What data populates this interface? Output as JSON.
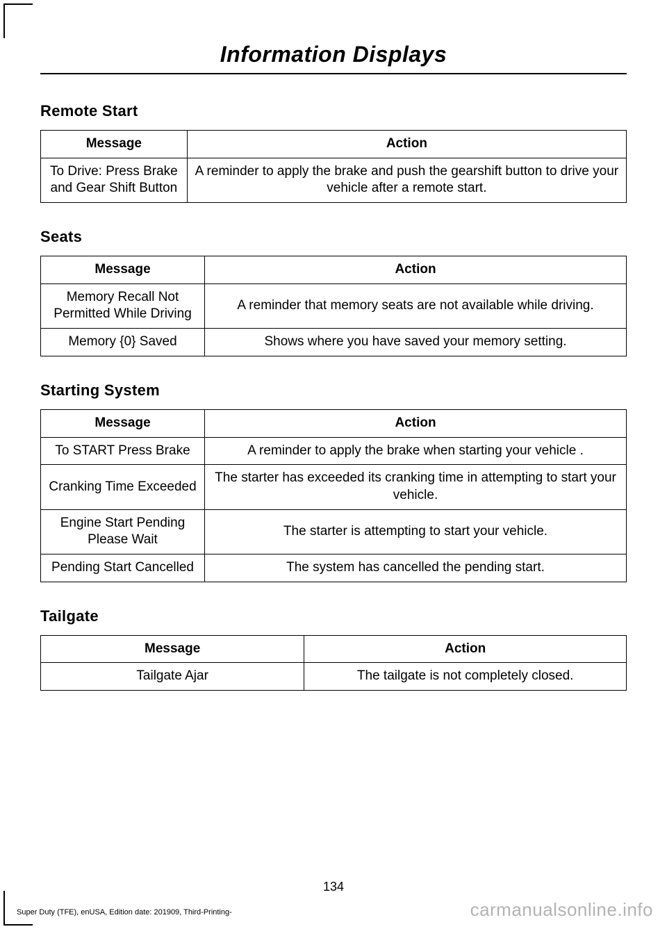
{
  "page": {
    "title": "Information Displays",
    "number": "134",
    "footer": "Super Duty (TFE), enUSA, Edition date: 201909, Third-Printing-",
    "watermark": "carmanualsonline.info"
  },
  "sections": {
    "remote_start": {
      "title": "Remote Start",
      "col_message": "Message",
      "col_action": "Action",
      "col1_width": "25%",
      "col2_width": "75%",
      "rows": [
        {
          "message": "To Drive: Press Brake and Gear Shift Button",
          "action": "A reminder to apply the brake and push the gearshift button to drive your vehicle after a remote start."
        }
      ]
    },
    "seats": {
      "title": "Seats",
      "col_message": "Message",
      "col_action": "Action",
      "col1_width": "28%",
      "col2_width": "72%",
      "rows": [
        {
          "message": "Memory Recall Not Permitted While Driving",
          "action": "A reminder that memory seats are not available while driving."
        },
        {
          "message": "Memory {0} Saved",
          "action": "Shows where you have saved your memory setting."
        }
      ]
    },
    "starting_system": {
      "title": "Starting System",
      "col_message": "Message",
      "col_action": "Action",
      "col1_width": "28%",
      "col2_width": "72%",
      "rows": [
        {
          "message": "To START Press Brake",
          "action": "A reminder to apply the brake when starting your vehicle ."
        },
        {
          "message": "Cranking Time Exceeded",
          "action": "The starter has exceeded its cranking time in attempting to start your vehicle."
        },
        {
          "message": "Engine Start Pending Please Wait",
          "action": "The starter is attempting to start your vehicle."
        },
        {
          "message": "Pending Start Cancelled",
          "action": "The system has cancelled the pending start."
        }
      ]
    },
    "tailgate": {
      "title": "Tailgate",
      "col_message": "Message",
      "col_action": "Action",
      "col1_width": "45%",
      "col2_width": "55%",
      "rows": [
        {
          "message": "Tailgate Ajar",
          "action": "The tailgate is not completely closed."
        }
      ]
    }
  }
}
